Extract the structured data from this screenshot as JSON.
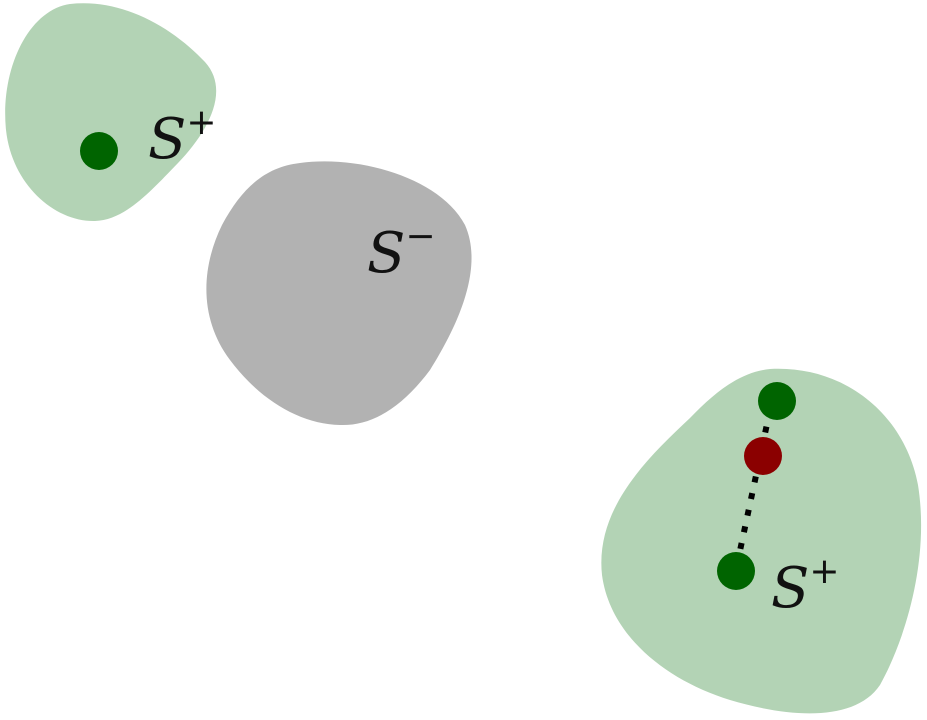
{
  "colors": {
    "positive_region": "#b3d3b5",
    "negative_region": "#b2b2b2",
    "positive_point": "#006400",
    "negative_point": "#8b0000",
    "dotted_line": "#000000"
  },
  "labels": {
    "top_left_region": {
      "base": "S",
      "sign": "+"
    },
    "middle_region": {
      "base": "S",
      "sign": "−"
    },
    "bottom_right_region": {
      "base": "S",
      "sign": "+"
    }
  }
}
